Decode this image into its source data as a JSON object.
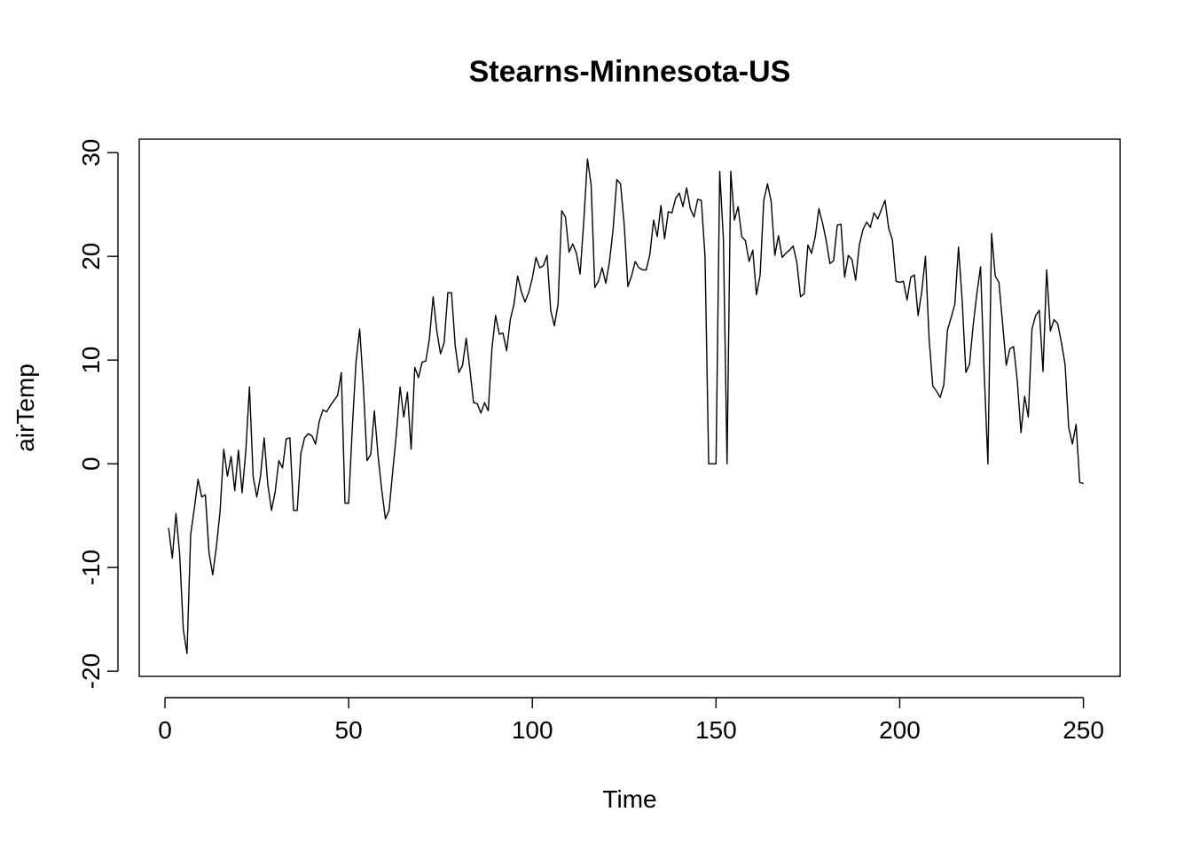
{
  "chart_data": {
    "type": "line",
    "title": "Stearns-Minnesota-US",
    "xlabel": "Time",
    "ylabel": "airTemp",
    "xlim": [
      -7,
      260
    ],
    "ylim": [
      -20.5,
      31.3
    ],
    "xticks": [
      0,
      50,
      100,
      150,
      200,
      250
    ],
    "yticks": [
      -20,
      -10,
      0,
      10,
      20,
      30
    ],
    "grid": false,
    "legend": "none",
    "line_color": "#000000",
    "series": [
      {
        "x_start": 1,
        "values": [
          -6.2,
          -9.1,
          -4.8,
          -8.7,
          -16.0,
          -18.3,
          -6.8,
          -4.3,
          -1.5,
          -3.2,
          -3.0,
          -8.6,
          -10.7,
          -8.0,
          -4.6,
          1.4,
          -1.2,
          0.7,
          -2.6,
          1.3,
          -2.8,
          1.2,
          7.4,
          -1.2,
          -3.2,
          -1.2,
          2.5,
          -2.0,
          -4.5,
          -2.7,
          0.3,
          -0.4,
          2.4,
          2.5,
          -4.5,
          -4.5,
          1.0,
          2.5,
          2.9,
          2.7,
          1.9,
          4.1,
          5.2,
          5.0,
          5.6,
          6.1,
          6.6,
          8.8,
          -3.8,
          -3.8,
          3.5,
          9.8,
          13.0,
          7.5,
          0.3,
          0.9,
          5.1,
          0.8,
          -2.5,
          -5.3,
          -4.5,
          -0.7,
          2.9,
          7.4,
          4.5,
          6.9,
          1.4,
          9.3,
          8.3,
          9.8,
          9.9,
          12.1,
          16.1,
          12.8,
          10.6,
          11.7,
          16.5,
          16.5,
          11.4,
          8.8,
          9.5,
          12.1,
          9.1,
          5.9,
          5.8,
          4.9,
          5.9,
          5.1,
          11.1,
          14.3,
          12.5,
          12.6,
          10.9,
          13.9,
          15.4,
          18.1,
          16.6,
          15.6,
          16.5,
          17.9,
          19.9,
          18.9,
          19.1,
          20.1,
          14.8,
          13.3,
          15.4,
          24.4,
          23.8,
          20.4,
          21.2,
          20.3,
          18.3,
          23.4,
          29.4,
          26.9,
          17.0,
          17.6,
          18.9,
          17.4,
          19.5,
          22.7,
          27.4,
          27.0,
          23.1,
          17.1,
          18.1,
          19.5,
          18.9,
          18.7,
          18.7,
          20.2,
          23.5,
          21.9,
          24.9,
          21.7,
          24.3,
          24.2,
          25.6,
          26.1,
          24.8,
          26.6,
          24.6,
          23.8,
          25.5,
          25.4,
          20.0,
          0.0,
          0.0,
          0.0,
          28.2,
          21.7,
          0.0,
          28.2,
          23.5,
          24.8,
          21.9,
          21.5,
          19.5,
          20.6,
          16.3,
          18.2,
          25.4,
          27.0,
          25.3,
          20.1,
          22.0,
          19.9,
          20.3,
          20.6,
          21.0,
          19.4,
          16.1,
          16.4,
          21.1,
          20.3,
          21.9,
          24.6,
          23.2,
          21.5,
          19.3,
          19.6,
          23.0,
          23.1,
          18.0,
          20.1,
          19.7,
          17.7,
          21.1,
          22.6,
          23.3,
          22.8,
          24.2,
          23.6,
          24.5,
          25.4,
          22.7,
          21.6,
          17.6,
          17.5,
          17.6,
          15.8,
          18.0,
          18.2,
          14.3,
          16.6,
          20.0,
          12.0,
          7.5,
          7.0,
          6.4,
          7.6,
          12.9,
          14.1,
          15.4,
          20.9,
          15.7,
          8.8,
          9.6,
          13.4,
          16.4,
          19.0,
          8.7,
          0.0,
          22.2,
          18.1,
          17.5,
          13.5,
          9.5,
          11.1,
          11.3,
          8.0,
          3.0,
          6.5,
          4.5,
          13.0,
          14.3,
          14.8,
          8.9,
          18.7,
          12.8,
          13.9,
          13.5,
          11.7,
          9.6,
          3.5,
          1.9,
          3.8,
          -1.8,
          -1.9
        ]
      }
    ]
  }
}
